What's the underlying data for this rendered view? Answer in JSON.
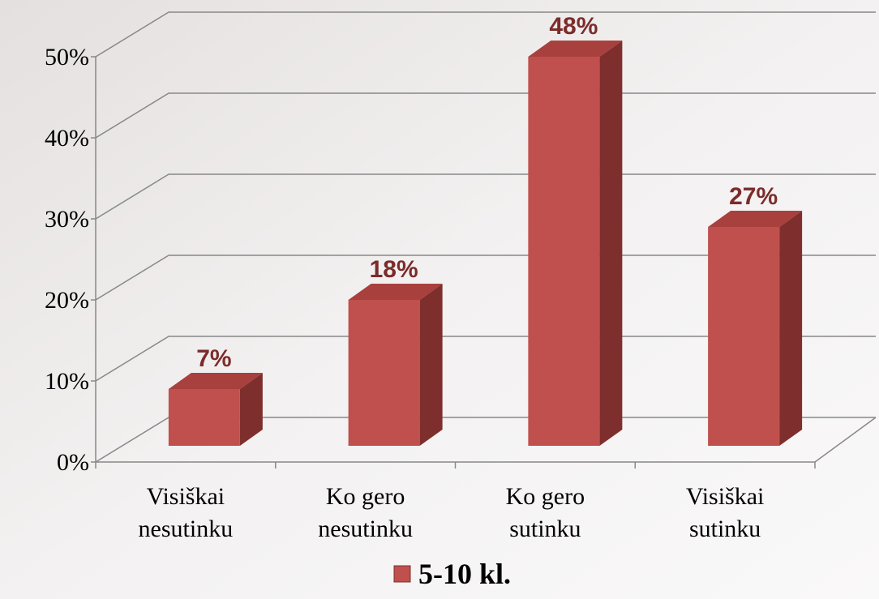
{
  "chart_data": {
    "type": "bar3d",
    "categories": [
      "Visiškai nesutinku",
      "Ko gero nesutinku",
      "Ko gero sutinku",
      "Visiškai sutinku"
    ],
    "series": [
      {
        "name": "5-10 kl.",
        "color": "#c0504d",
        "values": [
          7,
          18,
          48,
          27
        ],
        "value_labels": [
          "7%",
          "18%",
          "48%",
          "27%"
        ]
      }
    ],
    "ylim": [
      0,
      50
    ],
    "yticks": [
      {
        "value": 0,
        "label": "0%"
      },
      {
        "value": 10,
        "label": "10%"
      },
      {
        "value": 20,
        "label": "20%"
      },
      {
        "value": 30,
        "label": "30%"
      },
      {
        "value": 40,
        "label": "40%"
      },
      {
        "value": 50,
        "label": "50%"
      }
    ],
    "grid": true,
    "legend": "bottom"
  }
}
